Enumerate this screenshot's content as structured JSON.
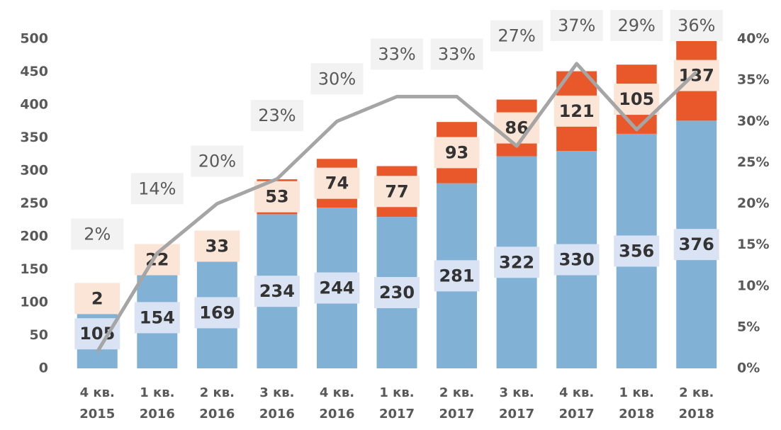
{
  "chart_data": {
    "type": "bar",
    "categories": [
      [
        "4 кв.",
        "2015"
      ],
      [
        "1 кв.",
        "2016"
      ],
      [
        "2 кв.",
        "2016"
      ],
      [
        "3 кв.",
        "2016"
      ],
      [
        "4 кв.",
        "2016"
      ],
      [
        "1 кв.",
        "2017"
      ],
      [
        "2 кв.",
        "2017"
      ],
      [
        "3 кв.",
        "2017"
      ],
      [
        "4 кв.",
        "2017"
      ],
      [
        "1 кв.",
        "2018"
      ],
      [
        "2 кв.",
        "2018"
      ]
    ],
    "series": [
      {
        "color": "#82b1d6",
        "values": [
          105,
          154,
          169,
          234,
          244,
          230,
          281,
          322,
          330,
          356,
          376
        ]
      },
      {
        "color": "#e8582a",
        "values": [
          2,
          22,
          33,
          53,
          74,
          77,
          93,
          86,
          121,
          105,
          137
        ]
      },
      {
        "type": "line",
        "axis": "y2",
        "color": "#a5a5a5",
        "values": [
          2,
          14,
          20,
          23,
          30,
          33,
          33,
          27,
          37,
          29,
          36
        ],
        "value_labels": [
          "2%",
          "14%",
          "20%",
          "23%",
          "30%",
          "33%",
          "33%",
          "27%",
          "37%",
          "29%",
          "36%"
        ]
      }
    ],
    "ylim": [
      0,
      500
    ],
    "yticks": [
      0,
      50,
      100,
      150,
      200,
      250,
      300,
      350,
      400,
      450,
      500
    ],
    "y2lim": [
      0,
      40
    ],
    "y2ticks": [
      {
        "value": 0,
        "label": "0%"
      },
      {
        "value": 5,
        "label": "5%"
      },
      {
        "value": 10,
        "label": "10%"
      },
      {
        "value": 15,
        "label": "15%"
      },
      {
        "value": 20,
        "label": "20%"
      },
      {
        "value": 25,
        "label": "25%"
      },
      {
        "value": 30,
        "label": "30%"
      },
      {
        "value": 35,
        "label": "35%"
      },
      {
        "value": 40,
        "label": "40%"
      }
    ],
    "grid": false
  }
}
